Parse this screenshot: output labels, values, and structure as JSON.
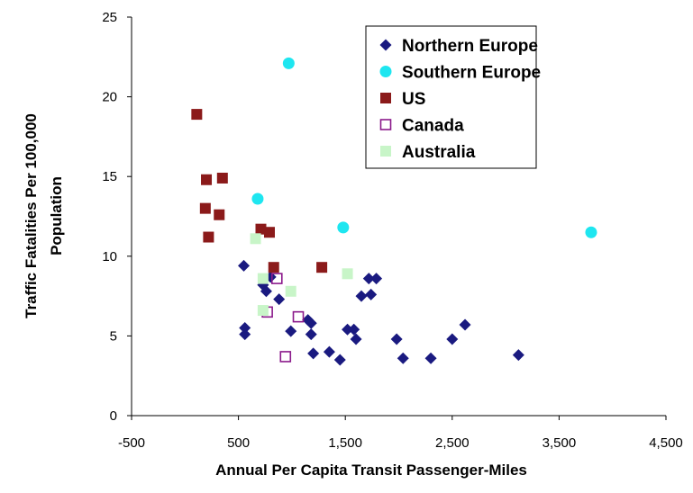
{
  "chart_data": {
    "type": "scatter",
    "title": "",
    "xlabel": "Annual Per Capita Transit Passenger-Miles",
    "ylabel_lines": [
      "Traffic Fatalities Per 100,000",
      "Population"
    ],
    "xlim": [
      -500,
      4500
    ],
    "ylim": [
      0,
      25
    ],
    "x_ticks": [
      -500,
      500,
      1500,
      2500,
      3500,
      4500
    ],
    "x_tick_labels": [
      "-500",
      "500",
      "1,500",
      "2,500",
      "3,500",
      "4,500"
    ],
    "y_ticks": [
      0,
      5,
      10,
      15,
      20,
      25
    ],
    "y_tick_labels": [
      "0",
      "5",
      "10",
      "15",
      "20",
      "25"
    ],
    "grid": false,
    "legend_position": "top-right",
    "series": [
      {
        "name": "Northern Europe",
        "marker": "diamond",
        "color": "#1a1a80",
        "points": [
          [
            550,
            9.4
          ],
          [
            560,
            5.5
          ],
          [
            560,
            5.1
          ],
          [
            730,
            8.2
          ],
          [
            760,
            7.8
          ],
          [
            800,
            8.7
          ],
          [
            880,
            7.3
          ],
          [
            990,
            5.3
          ],
          [
            1150,
            6.0
          ],
          [
            1180,
            5.8
          ],
          [
            1180,
            5.1
          ],
          [
            1200,
            3.9
          ],
          [
            1350,
            4.0
          ],
          [
            1450,
            3.5
          ],
          [
            1520,
            5.4
          ],
          [
            1580,
            5.4
          ],
          [
            1600,
            4.8
          ],
          [
            1650,
            7.5
          ],
          [
            1720,
            8.6
          ],
          [
            1740,
            7.6
          ],
          [
            1790,
            8.6
          ],
          [
            1980,
            4.8
          ],
          [
            2040,
            3.6
          ],
          [
            2300,
            3.6
          ],
          [
            2500,
            4.8
          ],
          [
            2620,
            5.7
          ],
          [
            3120,
            3.8
          ]
        ]
      },
      {
        "name": "Southern Europe",
        "marker": "circle",
        "color": "#1ee6f0",
        "points": [
          [
            970,
            22.1
          ],
          [
            680,
            13.6
          ],
          [
            1480,
            11.8
          ],
          [
            3800,
            11.5
          ]
        ]
      },
      {
        "name": "US",
        "marker": "square",
        "color": "#8b1a1a",
        "points": [
          [
            110,
            18.9
          ],
          [
            200,
            14.8
          ],
          [
            190,
            13.0
          ],
          [
            220,
            11.2
          ],
          [
            350,
            14.9
          ],
          [
            320,
            12.6
          ],
          [
            710,
            11.7
          ],
          [
            790,
            11.5
          ],
          [
            830,
            9.3
          ],
          [
            1280,
            9.3
          ]
        ]
      },
      {
        "name": "Canada",
        "marker": "open-square",
        "color": "#8b1a8b",
        "points": [
          [
            860,
            8.6
          ],
          [
            770,
            6.5
          ],
          [
            1060,
            6.2
          ],
          [
            940,
            3.7
          ]
        ]
      },
      {
        "name": "Australia",
        "marker": "square",
        "color": "#c8f5c8",
        "points": [
          [
            660,
            11.1
          ],
          [
            730,
            8.6
          ],
          [
            990,
            7.8
          ],
          [
            1520,
            8.9
          ],
          [
            730,
            6.6
          ]
        ]
      }
    ]
  }
}
